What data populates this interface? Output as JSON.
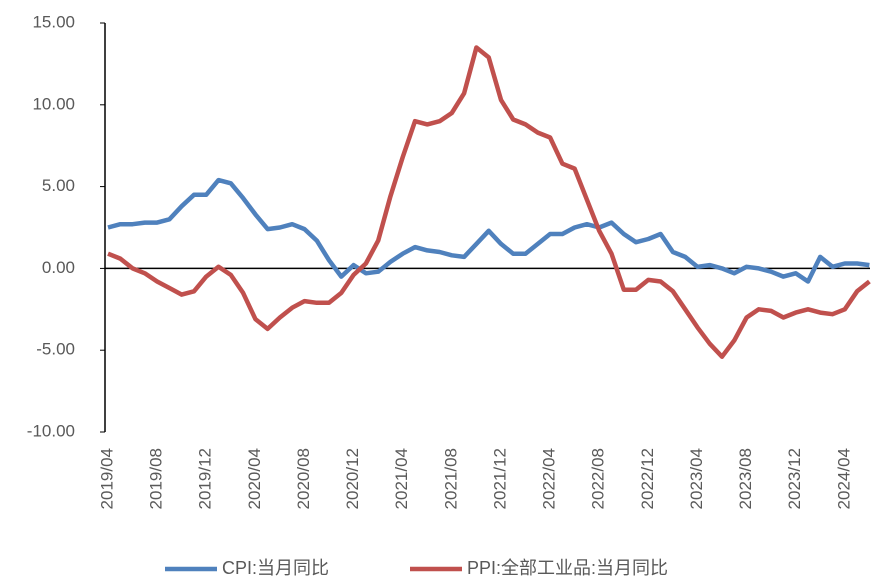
{
  "chart_data": {
    "type": "line",
    "categories": [
      "2019/04",
      null,
      null,
      null,
      "2019/08",
      null,
      null,
      null,
      "2019/12",
      null,
      null,
      null,
      "2020/04",
      null,
      null,
      null,
      "2020/08",
      null,
      null,
      null,
      "2020/12",
      null,
      null,
      null,
      "2021/04",
      null,
      null,
      null,
      "2021/08",
      null,
      null,
      null,
      "2021/12",
      null,
      null,
      null,
      "2022/04",
      null,
      null,
      null,
      "2022/08",
      null,
      null,
      null,
      "2022/12",
      null,
      null,
      null,
      "2023/04",
      null,
      null,
      null,
      "2023/08",
      null,
      null,
      null,
      "2023/12",
      null,
      null,
      null,
      "2024/04",
      null,
      null
    ],
    "series": [
      {
        "name": "CPI:当月同比",
        "color": "#4f81bd",
        "values": [
          2.5,
          2.7,
          2.7,
          2.8,
          2.8,
          3.0,
          3.8,
          4.5,
          4.5,
          5.4,
          5.2,
          4.3,
          3.3,
          2.4,
          2.5,
          2.7,
          2.4,
          1.7,
          0.5,
          -0.5,
          0.2,
          -0.3,
          -0.2,
          0.4,
          0.9,
          1.3,
          1.1,
          1.0,
          0.8,
          0.7,
          1.5,
          2.3,
          1.5,
          0.9,
          0.9,
          1.5,
          2.1,
          2.1,
          2.5,
          2.7,
          2.5,
          2.8,
          2.1,
          1.6,
          1.8,
          2.1,
          1.0,
          0.7,
          0.1,
          0.2,
          0.0,
          -0.3,
          0.1,
          0.0,
          -0.2,
          -0.5,
          -0.3,
          -0.8,
          0.7,
          0.1,
          0.3,
          0.3,
          0.2
        ]
      },
      {
        "name": "PPI:全部工业品:当月同比",
        "color": "#c0504d",
        "values": [
          0.9,
          0.6,
          0.0,
          -0.3,
          -0.8,
          -1.2,
          -1.6,
          -1.4,
          -0.5,
          0.1,
          -0.4,
          -1.5,
          -3.1,
          -3.7,
          -3.0,
          -2.4,
          -2.0,
          -2.1,
          -2.1,
          -1.5,
          -0.4,
          0.3,
          1.7,
          4.4,
          6.8,
          9.0,
          8.8,
          9.0,
          9.5,
          10.7,
          13.5,
          12.9,
          10.3,
          9.1,
          8.8,
          8.3,
          8.0,
          6.4,
          6.1,
          4.2,
          2.3,
          0.9,
          -1.3,
          -1.3,
          -0.7,
          -0.8,
          -1.4,
          -2.5,
          -3.6,
          -4.6,
          -5.4,
          -4.4,
          -3.0,
          -2.5,
          -2.6,
          -3.0,
          -2.7,
          -2.5,
          -2.7,
          -2.8,
          -2.5,
          -1.4,
          -0.8
        ]
      }
    ],
    "ylim": [
      -10,
      15
    ],
    "yticks": [
      {
        "value": -10,
        "label": "-10.00"
      },
      {
        "value": -5,
        "label": "-5.00"
      },
      {
        "value": 0,
        "label": "0.00"
      },
      {
        "value": 5,
        "label": "5.00"
      },
      {
        "value": 10,
        "label": "10.00"
      },
      {
        "value": 15,
        "label": "15.00"
      }
    ],
    "grid": false
  }
}
